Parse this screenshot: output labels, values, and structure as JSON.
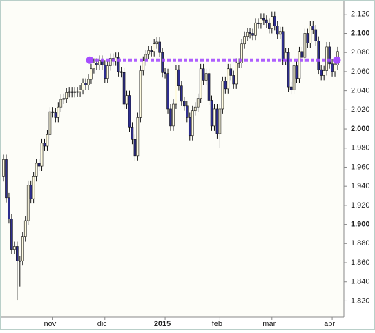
{
  "chart_data": {
    "type": "candlestick",
    "categories": [
      null,
      null,
      null,
      null,
      null,
      null,
      null,
      null,
      null,
      null,
      null,
      null,
      null,
      null,
      null,
      null,
      null,
      null,
      "nov",
      null,
      null,
      null,
      null,
      null,
      null,
      null,
      null,
      null,
      null,
      null,
      null,
      null,
      null,
      null,
      null,
      null,
      null,
      "dic",
      null,
      null,
      null,
      null,
      null,
      null,
      null,
      null,
      null,
      null,
      null,
      null,
      null,
      null,
      null,
      null,
      null,
      null,
      null,
      null,
      null,
      "2015",
      null,
      null,
      null,
      null,
      null,
      null,
      null,
      null,
      null,
      null,
      null,
      null,
      null,
      null,
      null,
      null,
      null,
      null,
      null,
      "feb",
      null,
      null,
      null,
      null,
      null,
      null,
      null,
      null,
      null,
      null,
      null,
      null,
      null,
      null,
      null,
      null,
      null,
      null,
      "mar",
      null,
      null,
      null,
      null,
      null,
      null,
      null,
      null,
      null,
      null,
      null,
      null,
      null,
      null,
      null,
      null,
      null,
      null,
      null,
      null,
      null,
      "abr",
      null,
      null
    ],
    "open": [
      1950,
      1968,
      1928,
      1906,
      1874,
      1877,
      1862,
      1862,
      1887,
      1904,
      1941,
      1927,
      1950,
      1964,
      1961,
      1985,
      1982,
      1994,
      2018,
      2017,
      2012,
      2023,
      2031,
      2032,
      2038,
      2039,
      2038,
      2039,
      2039,
      2041,
      2048,
      2046,
      2052,
      2063,
      2069,
      2067,
      2072,
      2067,
      2053,
      2066,
      2074,
      2071,
      2075,
      2060,
      2059,
      2026,
      2035,
      2002,
      1989,
      1972,
      2012,
      2061,
      2071,
      2078,
      2082,
      2081,
      2089,
      2091,
      2080,
      2059,
      2058,
      2021,
      2003,
      2026,
      2062,
      2045,
      2029,
      2024,
      2012,
      1993,
      2019,
      2023,
      2032,
      2063,
      2051,
      2058,
      2030,
      2003,
      2021,
      1995,
      2021,
      2050,
      2042,
      2063,
      2056,
      2047,
      2069,
      2069,
      2089,
      2097,
      2101,
      2100,
      2098,
      2111,
      2110,
      2116,
      2114,
      2111,
      2105,
      2118,
      2108,
      2099,
      2102,
      2072,
      2080,
      2044,
      2041,
      2066,
      2053,
      2081,
      2075,
      2100,
      2090,
      2108,
      2104,
      2092,
      2062,
      2056,
      2061,
      2086,
      2068,
      2060,
      2067
    ],
    "high": [
      1973,
      1973,
      1933,
      1911,
      1882,
      1882,
      1867,
      1892,
      1909,
      1946,
      1946,
      1955,
      1969,
      1969,
      1990,
      1990,
      1999,
      2023,
      2023,
      2022,
      2028,
      2036,
      2037,
      2043,
      2044,
      2044,
      2044,
      2044,
      2046,
      2053,
      2053,
      2057,
      2068,
      2074,
      2074,
      2077,
      2077,
      2072,
      2071,
      2079,
      2079,
      2080,
      2080,
      2065,
      2064,
      2040,
      2040,
      2007,
      1994,
      2017,
      2066,
      2076,
      2083,
      2087,
      2087,
      2094,
      2096,
      2096,
      2085,
      2064,
      2063,
      2026,
      2031,
      2067,
      2067,
      2050,
      2034,
      2029,
      2017,
      2024,
      2028,
      2037,
      2068,
      2068,
      2063,
      2063,
      2035,
      2026,
      2026,
      2026,
      2055,
      2055,
      2068,
      2068,
      2061,
      2074,
      2074,
      2094,
      2102,
      2106,
      2106,
      2105,
      2116,
      2116,
      2121,
      2121,
      2119,
      2116,
      2123,
      2123,
      2113,
      2107,
      2107,
      2085,
      2085,
      2049,
      2071,
      2071,
      2086,
      2086,
      2105,
      2105,
      2113,
      2113,
      2109,
      2097,
      2067,
      2066,
      2091,
      2091,
      2073,
      2072,
      2086
    ],
    "low": [
      1945,
      1923,
      1901,
      1869,
      1869,
      1821,
      1835,
      1857,
      1882,
      1899,
      1922,
      1922,
      1945,
      1956,
      1956,
      1977,
      1977,
      1989,
      2012,
      2007,
      2007,
      2018,
      2026,
      2027,
      2033,
      2033,
      2033,
      2034,
      2034,
      2036,
      2041,
      2041,
      2047,
      2058,
      2062,
      2062,
      2062,
      2048,
      2048,
      2061,
      2066,
      2066,
      2055,
      2054,
      2021,
      2021,
      1997,
      1984,
      1967,
      1967,
      2007,
      2056,
      2066,
      2073,
      2076,
      2076,
      2084,
      2075,
      2054,
      2053,
      2016,
      1998,
      1998,
      2021,
      2040,
      2024,
      2019,
      2007,
      1988,
      1988,
      2014,
      2018,
      2027,
      2046,
      2046,
      2025,
      1998,
      1998,
      1990,
      1980,
      2016,
      2037,
      2037,
      2051,
      2042,
      2042,
      2064,
      2064,
      2084,
      2092,
      2095,
      2093,
      2093,
      2105,
      2105,
      2109,
      2106,
      2100,
      2100,
      2103,
      2094,
      2094,
      2067,
      2067,
      2039,
      2036,
      2036,
      2048,
      2048,
      2070,
      2070,
      2085,
      2085,
      2099,
      2087,
      2057,
      2051,
      2051,
      2056,
      2063,
      2055,
      2055,
      2062
    ],
    "close": [
      1968,
      1928,
      1906,
      1874,
      1877,
      1862,
      1862,
      1887,
      1904,
      1941,
      1927,
      1950,
      1964,
      1961,
      1985,
      1982,
      1994,
      2018,
      2017,
      2012,
      2023,
      2031,
      2032,
      2038,
      2039,
      2038,
      2039,
      2039,
      2041,
      2048,
      2046,
      2052,
      2063,
      2069,
      2067,
      2072,
      2067,
      2053,
      2066,
      2074,
      2071,
      2075,
      2060,
      2059,
      2026,
      2035,
      2002,
      1989,
      1972,
      2012,
      2061,
      2071,
      2078,
      2082,
      2081,
      2089,
      2091,
      2080,
      2059,
      2058,
      2021,
      2003,
      2026,
      2062,
      2045,
      2029,
      2024,
      2012,
      1993,
      2019,
      2023,
      2032,
      2063,
      2051,
      2058,
      2030,
      2003,
      2021,
      1995,
      2021,
      2050,
      2042,
      2063,
      2056,
      2047,
      2069,
      2069,
      2089,
      2097,
      2101,
      2100,
      2098,
      2111,
      2110,
      2116,
      2114,
      2111,
      2105,
      2118,
      2108,
      2099,
      2102,
      2072,
      2080,
      2044,
      2041,
      2066,
      2053,
      2081,
      2075,
      2100,
      2090,
      2108,
      2104,
      2092,
      2062,
      2056,
      2061,
      2086,
      2068,
      2060,
      2067,
      2081
    ],
    "up_color": "#fffbe0",
    "down_color": "#2e2e8f",
    "ylim": [
      1803,
      2135
    ],
    "yticks": [
      {
        "value": 1820,
        "label": "1.820"
      },
      {
        "value": 1840,
        "label": "1.840"
      },
      {
        "value": 1860,
        "label": "1.860"
      },
      {
        "value": 1880,
        "label": "1.880"
      },
      {
        "value": 1900,
        "label": "1.900",
        "bold": true
      },
      {
        "value": 1920,
        "label": "1.920"
      },
      {
        "value": 1940,
        "label": "1.940"
      },
      {
        "value": 1960,
        "label": "1.960"
      },
      {
        "value": 1980,
        "label": "1.980"
      },
      {
        "value": 2000,
        "label": "2.000",
        "bold": true
      },
      {
        "value": 2020,
        "label": "2.020"
      },
      {
        "value": 2040,
        "label": "2.040"
      },
      {
        "value": 2060,
        "label": "2.060"
      },
      {
        "value": 2080,
        "label": "2.080"
      },
      {
        "value": 2100,
        "label": "2.100",
        "bold": true
      },
      {
        "value": 2120,
        "label": "2.120"
      }
    ],
    "hline": {
      "value": 2072,
      "color": "#a64dff"
    }
  }
}
